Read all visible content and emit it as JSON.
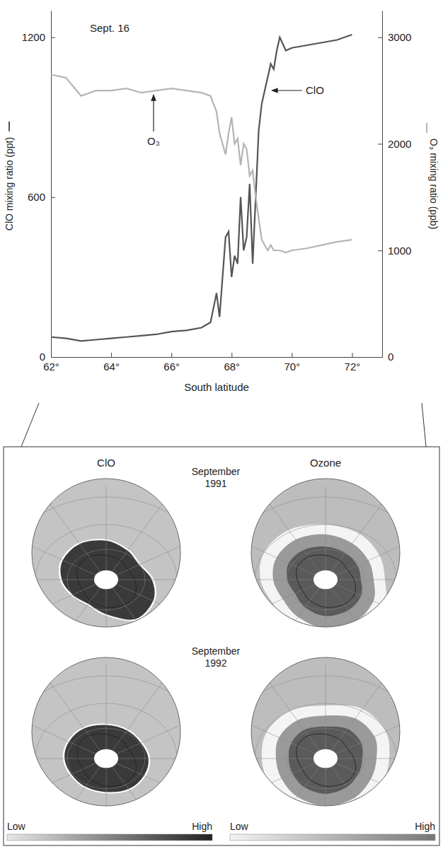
{
  "chart_data": {
    "type": "line",
    "title": "Sept. 16",
    "x": [
      62,
      62.5,
      63,
      63.5,
      64,
      64.5,
      65,
      65.5,
      66,
      66.5,
      67,
      67.3,
      67.5,
      67.6,
      67.7,
      67.8,
      67.9,
      68,
      68.1,
      68.2,
      68.3,
      68.4,
      68.5,
      68.6,
      68.7,
      68.8,
      68.9,
      69,
      69.1,
      69.2,
      69.3,
      69.4,
      69.5,
      69.6,
      69.8,
      70,
      70.5,
      71,
      71.5,
      72
    ],
    "xlim": [
      62,
      73
    ],
    "xticks": [
      {
        "value": 62,
        "label": "62°"
      },
      {
        "value": 64,
        "label": "64°"
      },
      {
        "value": 66,
        "label": "66°"
      },
      {
        "value": 68,
        "label": "68°"
      },
      {
        "value": 70,
        "label": "70°"
      },
      {
        "value": 72,
        "label": "72°"
      }
    ],
    "xlabel": "South latitude",
    "ylabel": "ClO mixing ratio (ppt)",
    "ylim": [
      0,
      1300
    ],
    "yticks": [
      0,
      600,
      1200
    ],
    "y2label": "O₃ mixing ratio (ppb)",
    "y2lim": [
      0,
      3250
    ],
    "y2ticks": [
      0,
      1000,
      2000,
      3000
    ],
    "grid": false,
    "series": [
      {
        "name": "ClO",
        "color": "#555555",
        "values": [
          75,
          70,
          60,
          65,
          70,
          75,
          80,
          85,
          95,
          100,
          110,
          130,
          240,
          150,
          300,
          450,
          470,
          300,
          380,
          350,
          600,
          400,
          450,
          650,
          350,
          600,
          850,
          950,
          1000,
          1050,
          1100,
          1080,
          1150,
          1200,
          1150,
          1160,
          1170,
          1180,
          1190,
          1210
        ]
      },
      {
        "name": "O₃",
        "color": "#b4b4b4",
        "axis": "y2",
        "values": [
          2650,
          2620,
          2450,
          2500,
          2500,
          2520,
          2480,
          2500,
          2520,
          2500,
          2480,
          2450,
          2300,
          2100,
          2000,
          1900,
          2100,
          2250,
          2000,
          2050,
          1800,
          2000,
          1950,
          1700,
          1750,
          1500,
          1300,
          1100,
          1050,
          1000,
          1050,
          1000,
          1000,
          1000,
          980,
          1000,
          1020,
          1050,
          1080,
          1100
        ]
      }
    ]
  },
  "maps": {
    "columns": [
      "ClO",
      "Ozone"
    ],
    "rows": [
      "September 1991",
      "September 1992"
    ],
    "scales": [
      {
        "low": "Low",
        "high": "High"
      },
      {
        "low": "Low",
        "high": "High"
      }
    ]
  }
}
